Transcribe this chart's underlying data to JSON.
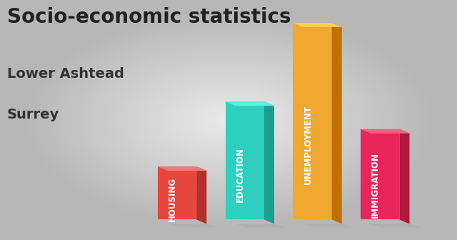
{
  "title": "Socio-economic statistics",
  "subtitle1": "Lower Ashtead",
  "subtitle2": "Surrey",
  "categories": [
    "HOUSING",
    "EDUCATION",
    "UNEMPLOYMENT",
    "IMMIGRATION"
  ],
  "values": [
    0.27,
    0.6,
    1.0,
    0.46
  ],
  "colors_front": [
    "#E8453C",
    "#2ECFBE",
    "#F0A830",
    "#E8265A"
  ],
  "colors_side": [
    "#B53028",
    "#1A9E90",
    "#C07000",
    "#B01840"
  ],
  "colors_top": [
    "#F07878",
    "#5EEEDD",
    "#FFD050",
    "#F06080"
  ],
  "background_color": "#CCCCCC",
  "title_color": "#222222",
  "subtitle_color": "#333333",
  "title_fontsize": 20,
  "subtitle_fontsize": 14,
  "label_fontsize": 8.5
}
